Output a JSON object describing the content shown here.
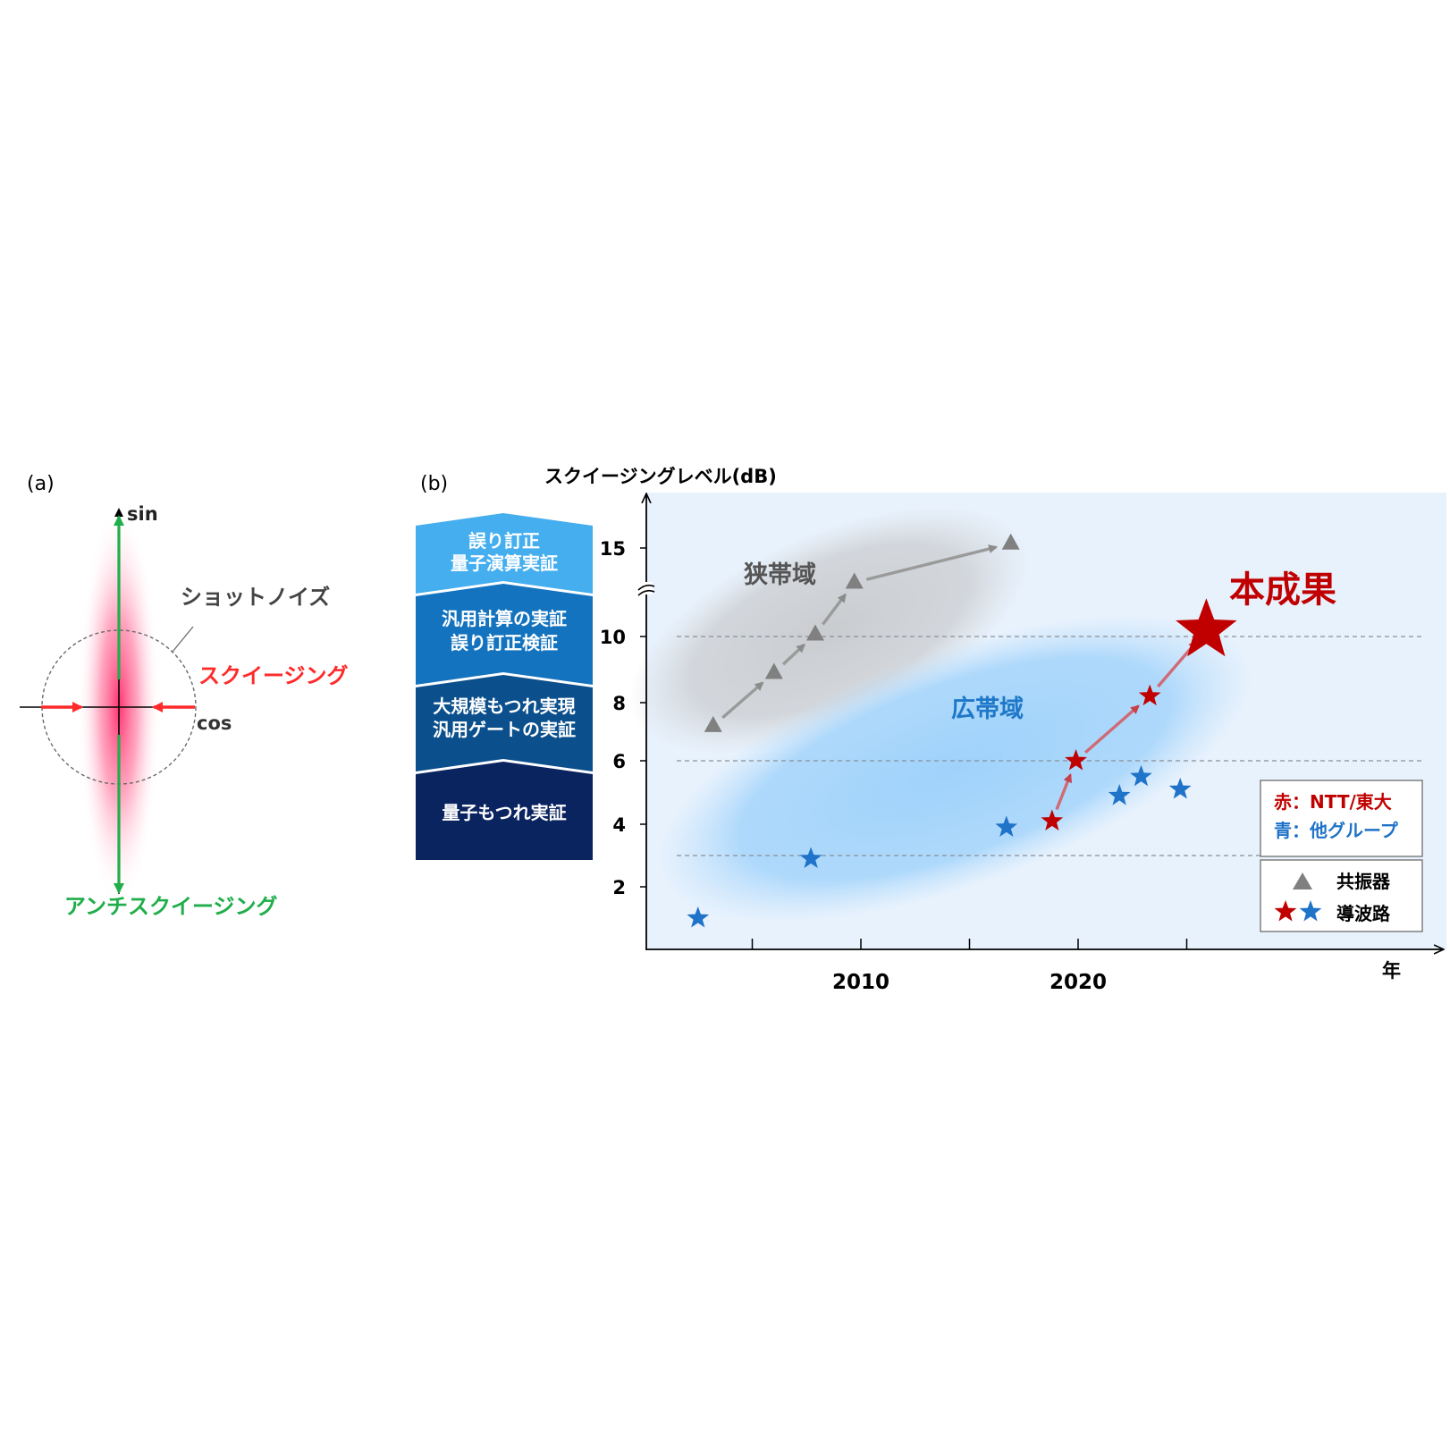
{
  "panel_a": {
    "label": "(a)",
    "sin_label": "sin",
    "cos_label": "cos",
    "shot_noise_label": "ショットノイズ",
    "squeezing_label": "スクイージング",
    "anti_squeezing_label": "アンチスクイージング"
  },
  "panel_b": {
    "label": "(b)",
    "ladder": [
      {
        "line1": "誤り訂正",
        "line2": "量子演算実証"
      },
      {
        "line1": "汎用計算の実証",
        "line2": "誤り訂正検証"
      },
      {
        "line1": "大規模もつれ実現",
        "line2": "汎用ゲートの実証"
      },
      {
        "line1": "量子もつれ実証",
        "line2": ""
      }
    ],
    "region_narrow": "狭帯域",
    "region_broad": "広帯域",
    "highlight": "本成果",
    "legend_color": {
      "red": "赤：NTT/東大",
      "blue": "青：他グループ"
    },
    "legend_marker": {
      "triangle": "共振器",
      "star": "導波路"
    }
  },
  "chart_data": {
    "type": "scatter",
    "title": "",
    "ylabel": "スクイージングレベル(dB)",
    "xlabel": "年",
    "x_ticks": [
      2005,
      2010,
      2015,
      2020,
      2025
    ],
    "x_tick_labels": [
      {
        "value": 2010,
        "label": "2010"
      },
      {
        "value": 2020,
        "label": "2020"
      }
    ],
    "y_ticks": [
      {
        "value": 2,
        "label": "2"
      },
      {
        "value": 4,
        "label": "4"
      },
      {
        "value": 6,
        "label": "6"
      },
      {
        "value": 8,
        "label": "8"
      },
      {
        "value": 10,
        "label": "10"
      },
      {
        "value": 15,
        "label": "15"
      }
    ],
    "y_axis_break": true,
    "reference_lines_db": [
      3,
      6,
      10
    ],
    "series": [
      {
        "name": "共振器",
        "marker": "triangle",
        "color": "#808080",
        "points": [
          [
            2003.2,
            7.2
          ],
          [
            2006.0,
            8.9
          ],
          [
            2007.9,
            10.1
          ],
          [
            2009.7,
            12.7
          ],
          [
            2016.9,
            15.3
          ]
        ]
      },
      {
        "name": "赤：NTT/東大",
        "marker": "star",
        "color": "#c00000",
        "points": [
          [
            2018.8,
            4.1
          ],
          [
            2019.9,
            6.0
          ],
          [
            2023.3,
            8.2
          ],
          [
            2025.9,
            10.3
          ]
        ]
      },
      {
        "name": "青：他グループ",
        "marker": "star",
        "color": "#1f73c8",
        "points": [
          [
            2002.5,
            1.0
          ],
          [
            2007.7,
            2.9
          ],
          [
            2016.7,
            3.9
          ],
          [
            2021.9,
            4.9
          ],
          [
            2022.9,
            5.5
          ],
          [
            2024.7,
            5.1
          ]
        ]
      }
    ],
    "highlight_point": [
      2025.9,
      10.3
    ]
  },
  "colors": {
    "squeeze": "#ff2a2a",
    "anti_squeeze": "#1fae4a",
    "ntt_red": "#c00000",
    "other_blue": "#1f73c8",
    "resonator_gray": "#808080",
    "plot_bg": "#e8f2fd"
  }
}
